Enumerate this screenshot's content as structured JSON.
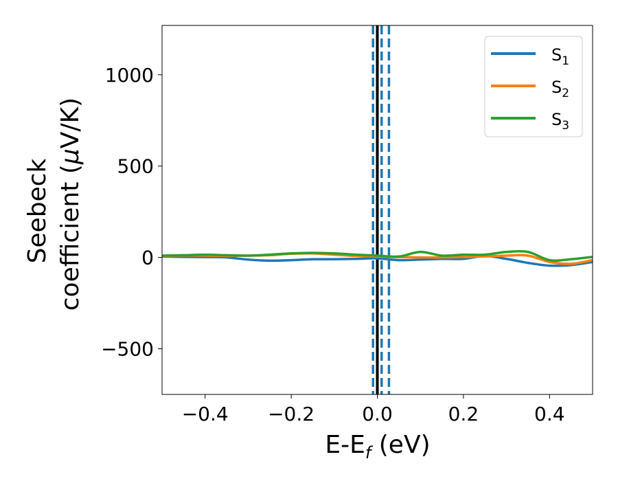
{
  "chart_data": {
    "type": "line",
    "xlabel": "E-E",
    "xlabel_sub": "f",
    "xlabel_unit": " (eV)",
    "ylabel_line1": "Seebeck",
    "ylabel_line2": "coefficient  (",
    "ylabel_mu": "μ",
    "ylabel_unit_tail": "V/K)",
    "xlim": [
      -0.5,
      0.5
    ],
    "ylim": [
      -750,
      1270
    ],
    "xticks": [
      -0.4,
      -0.2,
      0.0,
      0.2,
      0.4
    ],
    "xtick_labels": [
      "−0.4",
      "−0.2",
      "0.0",
      "0.2",
      "0.4"
    ],
    "yticks": [
      -500,
      0,
      500,
      1000
    ],
    "ytick_labels": [
      "−500",
      "0",
      "500",
      "1000"
    ],
    "grid": false,
    "legend": "top-right",
    "vlines": [
      {
        "x": 0.0,
        "style": "solid",
        "color": "#000000"
      },
      {
        "x": -0.01,
        "style": "dashed",
        "color": "#1f77b4"
      },
      {
        "x": 0.01,
        "style": "dashed",
        "color": "#1f77b4"
      },
      {
        "x": 0.027,
        "style": "dashed",
        "color": "#1f77b4"
      }
    ],
    "series": [
      {
        "name": "S",
        "sub": "1",
        "color": "#1f77b4",
        "x": [
          -0.5,
          -0.45,
          -0.4,
          -0.35,
          -0.3,
          -0.25,
          -0.2,
          -0.15,
          -0.1,
          -0.05,
          0.0,
          0.05,
          0.1,
          0.15,
          0.2,
          0.25,
          0.3,
          0.35,
          0.4,
          0.45,
          0.5
        ],
        "y": [
          5,
          3,
          2,
          0,
          -12,
          -18,
          -15,
          -10,
          -10,
          -8,
          -5,
          -15,
          -12,
          -8,
          -8,
          8,
          -8,
          -30,
          -45,
          -42,
          -25
        ]
      },
      {
        "name": "S",
        "sub": "2",
        "color": "#ff7f0e",
        "x": [
          -0.5,
          -0.45,
          -0.4,
          -0.35,
          -0.3,
          -0.25,
          -0.2,
          -0.15,
          -0.1,
          -0.05,
          0.0,
          0.05,
          0.1,
          0.15,
          0.2,
          0.25,
          0.3,
          0.35,
          0.4,
          0.45,
          0.5
        ],
        "y": [
          8,
          10,
          10,
          8,
          10,
          12,
          20,
          22,
          15,
          8,
          5,
          2,
          0,
          0,
          2,
          5,
          10,
          10,
          -25,
          -35,
          -15
        ]
      },
      {
        "name": "S",
        "sub": "3",
        "color": "#2ca02c",
        "x": [
          -0.5,
          -0.45,
          -0.4,
          -0.35,
          -0.3,
          -0.25,
          -0.2,
          -0.15,
          -0.1,
          -0.05,
          0.0,
          0.05,
          0.1,
          0.15,
          0.2,
          0.25,
          0.3,
          0.35,
          0.4,
          0.45,
          0.5
        ],
        "y": [
          10,
          12,
          15,
          12,
          10,
          15,
          22,
          25,
          22,
          15,
          10,
          5,
          30,
          10,
          15,
          15,
          30,
          30,
          -15,
          -10,
          3
        ]
      }
    ]
  }
}
